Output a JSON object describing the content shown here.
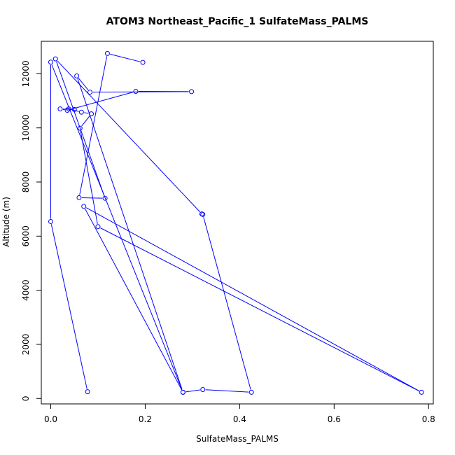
{
  "chart_data": {
    "type": "line",
    "title": "ATOM3 Northeast_Pacific_1 SulfateMass_PALMS",
    "xlabel": "SulfateMass_PALMS",
    "ylabel": "Altitude (m)",
    "xlim": [
      -0.02,
      0.81
    ],
    "ylim": [
      -200,
      13200
    ],
    "x_ticks": [
      0,
      0.2,
      0.4,
      0.6,
      0.8
    ],
    "x_tick_labels": [
      "0.0",
      "0.2",
      "0.4",
      "0.6",
      "0.8"
    ],
    "y_ticks": [
      0,
      2000,
      4000,
      6000,
      8000,
      10000,
      12000
    ],
    "y_tick_labels": [
      "0",
      "2000",
      "4000",
      "6000",
      "8000",
      "10000",
      "12000"
    ],
    "color": "#0000ff",
    "grid": false,
    "series": [
      {
        "x": [
          0.195,
          0.12,
          0.06,
          0.115,
          0.01,
          0.32,
          0.322,
          0.425,
          0.322,
          0.28,
          0.055,
          0.083,
          0.298,
          0.18,
          0.035,
          0.02,
          0.05,
          0.038,
          0.065,
          0.086,
          0.062,
          0.1,
          0.785,
          0.07,
          0.28,
          0.0,
          0.0,
          0.078
        ],
        "y": [
          12420,
          12750,
          7420,
          7400,
          12550,
          6820,
          6800,
          230,
          330,
          230,
          11920,
          11320,
          11340,
          11350,
          10650,
          10700,
          10680,
          10700,
          10580,
          10520,
          9990,
          6350,
          230,
          7100,
          230,
          12430,
          6540,
          250
        ]
      }
    ]
  }
}
